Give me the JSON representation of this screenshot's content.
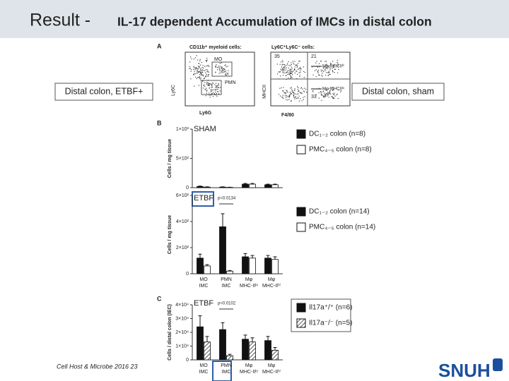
{
  "header": {
    "title": "Result -",
    "subtitle": "IL-17 dependent Accumulation of IMCs in distal colon"
  },
  "labels": {
    "left": "Distal colon, ETBF+",
    "right": "Distal colon, sham"
  },
  "citation": "Cell Host & Microbe 2016 23",
  "logo": "SNUH",
  "panel_a": {
    "letter": "A",
    "left_title": "CD11b⁺ myeloid cells:",
    "right_title": "Ly6C⁺Ly6C⁻ cells:",
    "left_ylabel": "Ly6C",
    "left_xlabel": "Ly6G",
    "right_ylabel": "MHCII",
    "right_xlabel": "F4/80",
    "gate_mo": "MO",
    "gate_pmn": "PMN",
    "q1": "35",
    "q2": "21",
    "q3": "33",
    "arrow_hi": "Mφ-MHCIIʰⁱ",
    "arrow_lo": "Mφ-MHCIIˡᵒ"
  },
  "chart_data": [
    {
      "type": "bar",
      "panel": "B",
      "title": "SHAM",
      "ylabel": "Cells / mg tissue",
      "categories": [
        null,
        null,
        null,
        null
      ],
      "series": [
        {
          "name": "DC₁₋₂ colon (n=8)",
          "color": "#111111",
          "values": [
            20,
            10,
            60,
            50
          ],
          "errors": [
            8,
            5,
            12,
            10
          ]
        },
        {
          "name": "PMC₄₋₅ colon (n=8)",
          "color": "#ffffff",
          "values": [
            10,
            5,
            60,
            50
          ],
          "errors": [
            5,
            3,
            12,
            10
          ]
        }
      ],
      "ylim": [
        0,
        1000
      ],
      "yticks": [
        0,
        {
          "value": 500,
          "label": "5×10²"
        },
        {
          "value": 1000,
          "label": "1×10³"
        }
      ]
    },
    {
      "type": "bar",
      "panel": null,
      "title": "ETBF",
      "annotation": "p=0.0134",
      "ylabel": "Cells / mg tissue",
      "categories": [
        "MO IMC",
        "PMN IMC",
        "Mφ MHC-IIˡᵒ",
        "Mφ MHC-IIʰⁱ"
      ],
      "series": [
        {
          "name": "DC₁₋₂ colon (n=14)",
          "color": "#111111",
          "values": [
            120,
            360,
            130,
            120
          ],
          "errors": [
            30,
            100,
            25,
            20
          ]
        },
        {
          "name": "PMC₄₋₅ colon (n=14)",
          "color": "#ffffff",
          "values": [
            60,
            20,
            120,
            110
          ],
          "errors": [
            10,
            5,
            20,
            20
          ]
        }
      ],
      "ylim": [
        0,
        600
      ],
      "yticks": [
        0,
        {
          "value": 200,
          "label": "2×10²"
        },
        {
          "value": 400,
          "label": "4×10²"
        },
        {
          "value": 600,
          "label": "6×10²"
        }
      ]
    },
    {
      "type": "bar",
      "panel": "C",
      "title": "ETBF",
      "annotation": "p=0.0102",
      "ylabel": "Cells / distal colon (IEC)",
      "categories": [
        "MO IMC",
        "PMN IMC",
        "Mφ MHC-IIˡᵒ",
        "Mφ MHC-IIʰⁱ"
      ],
      "series": [
        {
          "name": "Il17a⁺/⁺ (n=6)",
          "color": "#111111",
          "values": [
            24000,
            22000,
            15000,
            14000
          ],
          "errors": [
            8000,
            5000,
            3000,
            3000
          ]
        },
        {
          "name": "Il17a⁻/⁻ (n=5)",
          "color": "#ffffff",
          "hatch": true,
          "values": [
            13000,
            3000,
            13000,
            7000
          ],
          "errors": [
            4000,
            1000,
            3000,
            2000
          ]
        }
      ],
      "ylim": [
        0,
        40000
      ],
      "yticks": [
        0,
        {
          "value": 10000,
          "label": "1×10⁴"
        },
        {
          "value": 20000,
          "label": "2×10⁴"
        },
        {
          "value": 30000,
          "label": "3×10⁴"
        },
        {
          "value": 40000,
          "label": "4×10⁴"
        }
      ]
    }
  ]
}
